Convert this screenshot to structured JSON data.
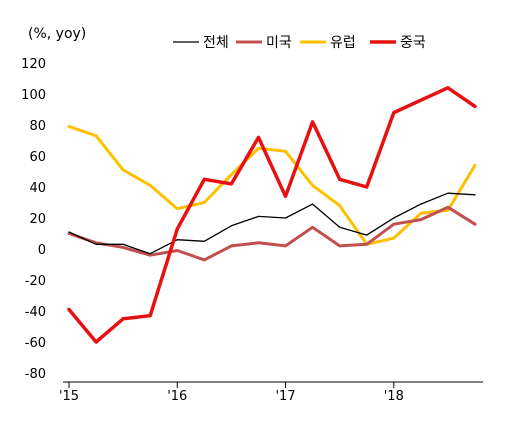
{
  "chart_data": {
    "type": "line",
    "unit_label": "(%, yoy)",
    "x": [
      0,
      1,
      2,
      3,
      4,
      5,
      6,
      7,
      8,
      9,
      10,
      11,
      12,
      13,
      14,
      15
    ],
    "x_ticks": [
      {
        "x": 0,
        "label": "'15"
      },
      {
        "x": 4,
        "label": "'16"
      },
      {
        "x": 8,
        "label": "'17"
      },
      {
        "x": 12,
        "label": "'18"
      }
    ],
    "ylim": [
      -80,
      120
    ],
    "yticks": [
      120,
      100,
      80,
      60,
      40,
      20,
      0,
      -20,
      -40,
      -60,
      -80
    ],
    "grid": false,
    "legend_position": "top",
    "series": [
      {
        "name": "전체",
        "color": "#000000",
        "width": 1.3,
        "values": [
          11,
          3,
          3,
          -3,
          6,
          5,
          15,
          21,
          20,
          29,
          14,
          9,
          20,
          29,
          36,
          35
        ]
      },
      {
        "name": "미국",
        "color": "#c0504d",
        "width": 3,
        "values": [
          10,
          4,
          1,
          -4,
          -1,
          -7,
          2,
          4,
          2,
          14,
          2,
          3,
          16,
          19,
          27,
          16
        ]
      },
      {
        "name": "유럽",
        "color": "#ffc000",
        "width": 3,
        "values": [
          79,
          73,
          51,
          41,
          26,
          30,
          48,
          65,
          63,
          41,
          28,
          3,
          7,
          23,
          25,
          54
        ]
      },
      {
        "name": "중국",
        "color": "#e81010",
        "width": 3.5,
        "values": [
          -39,
          -60,
          -45,
          -43,
          13,
          45,
          42,
          72,
          34,
          82,
          45,
          40,
          88,
          96,
          104,
          92
        ]
      }
    ]
  }
}
